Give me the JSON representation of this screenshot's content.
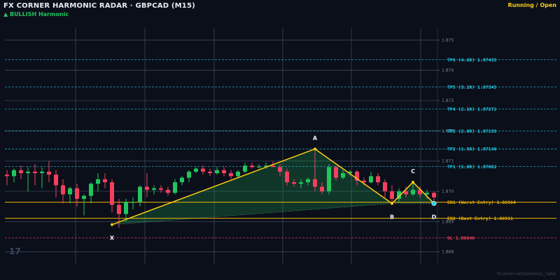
{
  "header": {
    "title": "FX CORNER HARMONIC RADAR  ·  GBPCAD (M15)",
    "subtitle": "▲ BULLISH  Harmonic",
    "status": "Running / Open"
  },
  "footer": {
    "url": "fxcorner.net/harmonic_radar"
  },
  "colors": {
    "background": "#0b0f1a",
    "bull": "#22c55e",
    "bear": "#f43f5e",
    "pattern": "#facc15",
    "tp": "#22d3ee",
    "entry": "#eab308",
    "sl": "#f43f5e"
  },
  "chart_data": {
    "type": "candlestick",
    "symbol": "GBPCAD",
    "timeframe": "M15",
    "ylim": [
      1.8676,
      1.8754
    ],
    "y_ticks": [
      "1.875",
      "1.874",
      "1.873",
      "1.872",
      "1.871",
      "1.870",
      "1.869",
      "1.868"
    ],
    "watermark": "17",
    "levels": [
      {
        "label": "TP6 (4.6R)  1.87435",
        "value": 1.87435,
        "kind": "tp"
      },
      {
        "label": "TP5 (3.1R)  1.87345",
        "value": 1.87345,
        "kind": "tp"
      },
      {
        "label": "TP4 (2.1R)  1.87272",
        "value": 1.87272,
        "kind": "tp"
      },
      {
        "label": "TP3 (2.0R)  1.87199",
        "value": 1.87199,
        "kind": "tp"
      },
      {
        "label": "TP2 (1.5R)  1.87140",
        "value": 1.8714,
        "kind": "tp"
      },
      {
        "label": "TP1 (1.0R)  1.87082",
        "value": 1.87082,
        "kind": "tp"
      },
      {
        "label": "EN1 (Worst Entry)  1.86964",
        "value": 1.86964,
        "kind": "entry"
      },
      {
        "label": "EN2 (Best Entry)  1.86911",
        "value": 1.86911,
        "kind": "entry"
      },
      {
        "label": "SL  1.86846",
        "value": 1.86846,
        "kind": "sl"
      }
    ],
    "pattern": [
      {
        "name": "X",
        "index": 15,
        "price": 1.8689
      },
      {
        "name": "A",
        "index": 44,
        "price": 1.8714
      },
      {
        "name": "B",
        "index": 55,
        "price": 1.8696
      },
      {
        "name": "C",
        "index": 58,
        "price": 1.8703
      },
      {
        "name": "D",
        "index": 61,
        "price": 1.8696
      }
    ],
    "candles": [
      {
        "o": 1.87055,
        "h": 1.8707,
        "l": 1.8702,
        "c": 1.8705
      },
      {
        "o": 1.8705,
        "h": 1.87075,
        "l": 1.8703,
        "c": 1.8707
      },
      {
        "o": 1.8707,
        "h": 1.87085,
        "l": 1.8704,
        "c": 1.8706
      },
      {
        "o": 1.8706,
        "h": 1.8708,
        "l": 1.87,
        "c": 1.87065
      },
      {
        "o": 1.87065,
        "h": 1.8709,
        "l": 1.8702,
        "c": 1.8706
      },
      {
        "o": 1.8706,
        "h": 1.8708,
        "l": 1.8701,
        "c": 1.87065
      },
      {
        "o": 1.87065,
        "h": 1.871,
        "l": 1.8703,
        "c": 1.87055
      },
      {
        "o": 1.87055,
        "h": 1.8707,
        "l": 1.8698,
        "c": 1.8702
      },
      {
        "o": 1.8702,
        "h": 1.8704,
        "l": 1.8696,
        "c": 1.8699
      },
      {
        "o": 1.8699,
        "h": 1.87015,
        "l": 1.8696,
        "c": 1.8701
      },
      {
        "o": 1.8701,
        "h": 1.87025,
        "l": 1.8695,
        "c": 1.86975
      },
      {
        "o": 1.86975,
        "h": 1.8699,
        "l": 1.8692,
        "c": 1.86985
      },
      {
        "o": 1.86985,
        "h": 1.8703,
        "l": 1.8696,
        "c": 1.87025
      },
      {
        "o": 1.87025,
        "h": 1.8706,
        "l": 1.87,
        "c": 1.8704
      },
      {
        "o": 1.8704,
        "h": 1.8706,
        "l": 1.8701,
        "c": 1.8703
      },
      {
        "o": 1.8703,
        "h": 1.8704,
        "l": 1.8693,
        "c": 1.86955
      },
      {
        "o": 1.86955,
        "h": 1.86975,
        "l": 1.8688,
        "c": 1.86925
      },
      {
        "o": 1.86925,
        "h": 1.86975,
        "l": 1.869,
        "c": 1.86965
      },
      {
        "o": 1.86965,
        "h": 1.8698,
        "l": 1.8694,
        "c": 1.86965
      },
      {
        "o": 1.86965,
        "h": 1.8702,
        "l": 1.8695,
        "c": 1.87015
      },
      {
        "o": 1.87015,
        "h": 1.8706,
        "l": 1.8698,
        "c": 1.87005
      },
      {
        "o": 1.87005,
        "h": 1.8702,
        "l": 1.8699,
        "c": 1.8701
      },
      {
        "o": 1.8701,
        "h": 1.8702,
        "l": 1.86995,
        "c": 1.87005
      },
      {
        "o": 1.87005,
        "h": 1.87015,
        "l": 1.86985,
        "c": 1.86995
      },
      {
        "o": 1.86995,
        "h": 1.8704,
        "l": 1.8699,
        "c": 1.8703
      },
      {
        "o": 1.8703,
        "h": 1.8705,
        "l": 1.8702,
        "c": 1.87045
      },
      {
        "o": 1.87045,
        "h": 1.8707,
        "l": 1.8703,
        "c": 1.87065
      },
      {
        "o": 1.87065,
        "h": 1.8708,
        "l": 1.8706,
        "c": 1.87075
      },
      {
        "o": 1.87075,
        "h": 1.87085,
        "l": 1.87055,
        "c": 1.87065
      },
      {
        "o": 1.87065,
        "h": 1.87075,
        "l": 1.8705,
        "c": 1.8706
      },
      {
        "o": 1.8706,
        "h": 1.8708,
        "l": 1.87055,
        "c": 1.8707
      },
      {
        "o": 1.8707,
        "h": 1.8708,
        "l": 1.8705,
        "c": 1.8706
      },
      {
        "o": 1.8706,
        "h": 1.8707,
        "l": 1.8704,
        "c": 1.8705
      },
      {
        "o": 1.8705,
        "h": 1.8707,
        "l": 1.87045,
        "c": 1.87065
      },
      {
        "o": 1.87065,
        "h": 1.87095,
        "l": 1.8706,
        "c": 1.87085
      },
      {
        "o": 1.87085,
        "h": 1.87095,
        "l": 1.87075,
        "c": 1.8708
      },
      {
        "o": 1.8708,
        "h": 1.8709,
        "l": 1.87075,
        "c": 1.87082
      },
      {
        "o": 1.87082,
        "h": 1.87095,
        "l": 1.87075,
        "c": 1.87085
      },
      {
        "o": 1.87085,
        "h": 1.871,
        "l": 1.8708,
        "c": 1.8708
      },
      {
        "o": 1.8708,
        "h": 1.8709,
        "l": 1.8705,
        "c": 1.87065
      },
      {
        "o": 1.87065,
        "h": 1.87075,
        "l": 1.8702,
        "c": 1.8703
      },
      {
        "o": 1.8703,
        "h": 1.8704,
        "l": 1.87015,
        "c": 1.87025
      },
      {
        "o": 1.87025,
        "h": 1.8704,
        "l": 1.8701,
        "c": 1.8703
      },
      {
        "o": 1.8703,
        "h": 1.87045,
        "l": 1.8702,
        "c": 1.8704
      },
      {
        "o": 1.8704,
        "h": 1.8714,
        "l": 1.87,
        "c": 1.87015
      },
      {
        "o": 1.87015,
        "h": 1.8703,
        "l": 1.8699,
        "c": 1.87
      },
      {
        "o": 1.87,
        "h": 1.8709,
        "l": 1.8699,
        "c": 1.8708
      },
      {
        "o": 1.8708,
        "h": 1.87085,
        "l": 1.87035,
        "c": 1.87045
      },
      {
        "o": 1.87045,
        "h": 1.8707,
        "l": 1.8704,
        "c": 1.8706
      },
      {
        "o": 1.8706,
        "h": 1.8707,
        "l": 1.8705,
        "c": 1.87065
      },
      {
        "o": 1.87065,
        "h": 1.8707,
        "l": 1.8702,
        "c": 1.87035
      },
      {
        "o": 1.87035,
        "h": 1.87045,
        "l": 1.8702,
        "c": 1.8703
      },
      {
        "o": 1.8703,
        "h": 1.87065,
        "l": 1.87025,
        "c": 1.8705
      },
      {
        "o": 1.8705,
        "h": 1.8706,
        "l": 1.8702,
        "c": 1.8703
      },
      {
        "o": 1.8703,
        "h": 1.8704,
        "l": 1.8698,
        "c": 1.87
      },
      {
        "o": 1.87,
        "h": 1.8702,
        "l": 1.8696,
        "c": 1.86975
      },
      {
        "o": 1.86975,
        "h": 1.8701,
        "l": 1.86965,
        "c": 1.87
      },
      {
        "o": 1.87,
        "h": 1.87015,
        "l": 1.8698,
        "c": 1.8699
      },
      {
        "o": 1.8699,
        "h": 1.8703,
        "l": 1.86985,
        "c": 1.87005
      },
      {
        "o": 1.87005,
        "h": 1.87015,
        "l": 1.8698,
        "c": 1.8699
      },
      {
        "o": 1.8699,
        "h": 1.87005,
        "l": 1.86975,
        "c": 1.86995
      },
      {
        "o": 1.86995,
        "h": 1.87,
        "l": 1.8696,
        "c": 1.8698
      }
    ]
  }
}
